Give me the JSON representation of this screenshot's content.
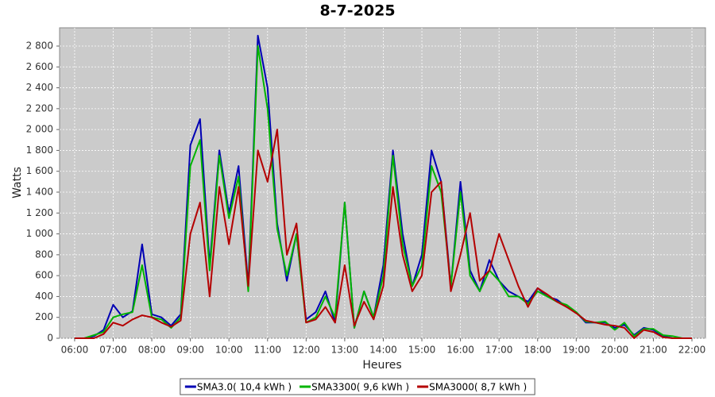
{
  "chart_data": {
    "type": "line",
    "title": "8-7-2025",
    "x_label": "Heures",
    "y_label": "Watts",
    "x": [
      6.0,
      6.25,
      6.5,
      6.75,
      7.0,
      7.25,
      7.5,
      7.75,
      8.0,
      8.25,
      8.5,
      8.75,
      9.0,
      9.25,
      9.5,
      9.75,
      10.0,
      10.25,
      10.5,
      10.75,
      11.0,
      11.25,
      11.5,
      11.75,
      12.0,
      12.25,
      12.5,
      12.75,
      13.0,
      13.25,
      13.5,
      13.75,
      14.0,
      14.25,
      14.5,
      14.75,
      15.0,
      15.25,
      15.5,
      15.75,
      16.0,
      16.25,
      16.5,
      16.75,
      17.0,
      17.25,
      17.5,
      17.75,
      18.0,
      18.25,
      18.5,
      18.75,
      19.0,
      19.25,
      19.5,
      19.75,
      20.0,
      20.25,
      20.5,
      20.75,
      21.0,
      21.25,
      21.5,
      21.75,
      22.0
    ],
    "series": [
      {
        "name": "SMA3.0( 10,4 kWh )",
        "color": "#0000b4",
        "values": [
          0,
          0,
          20,
          80,
          320,
          200,
          260,
          900,
          230,
          200,
          120,
          230,
          1850,
          2100,
          700,
          1800,
          1200,
          1650,
          500,
          2900,
          2400,
          1100,
          550,
          1000,
          180,
          250,
          450,
          150,
          1300,
          100,
          450,
          200,
          700,
          1800,
          1000,
          500,
          800,
          1800,
          1500,
          500,
          1500,
          650,
          450,
          750,
          550,
          450,
          400,
          350,
          480,
          400,
          370,
          300,
          250,
          150,
          150,
          150,
          100,
          130,
          30,
          100,
          80,
          20,
          0,
          0,
          0
        ]
      },
      {
        "name": "SMA3300( 9,6 kWh )",
        "color": "#00b400",
        "values": [
          0,
          0,
          30,
          60,
          200,
          230,
          250,
          700,
          200,
          180,
          100,
          200,
          1650,
          1900,
          650,
          1750,
          1150,
          1550,
          450,
          2800,
          2200,
          1050,
          600,
          1000,
          150,
          200,
          400,
          200,
          1300,
          100,
          450,
          200,
          600,
          1750,
          900,
          500,
          700,
          1650,
          1400,
          500,
          1400,
          600,
          450,
          650,
          550,
          400,
          400,
          330,
          450,
          400,
          350,
          320,
          250,
          160,
          150,
          160,
          80,
          150,
          20,
          90,
          90,
          30,
          20,
          0,
          0
        ]
      },
      {
        "name": "SMA3000( 8,7 kWh )",
        "color": "#b40000",
        "values": [
          0,
          0,
          0,
          40,
          150,
          120,
          180,
          220,
          200,
          150,
          110,
          170,
          1000,
          1300,
          400,
          1450,
          900,
          1450,
          500,
          1800,
          1500,
          2000,
          800,
          1100,
          150,
          180,
          300,
          150,
          700,
          120,
          350,
          180,
          500,
          1450,
          800,
          450,
          600,
          1400,
          1500,
          450,
          800,
          1200,
          550,
          650,
          1000,
          750,
          500,
          300,
          480,
          420,
          350,
          300,
          240,
          170,
          150,
          130,
          120,
          100,
          0,
          80,
          60,
          10,
          0,
          0,
          0
        ]
      }
    ],
    "xlim": [
      5.61,
      22.35
    ],
    "xticks": [
      {
        "value": 6,
        "label": "06:00"
      },
      {
        "value": 7,
        "label": "07:00"
      },
      {
        "value": 8,
        "label": "08:00"
      },
      {
        "value": 9,
        "label": "09:00"
      },
      {
        "value": 10,
        "label": "10:00"
      },
      {
        "value": 11,
        "label": "11:00"
      },
      {
        "value": 12,
        "label": "12:00"
      },
      {
        "value": 13,
        "label": "13:00"
      },
      {
        "value": 14,
        "label": "14:00"
      },
      {
        "value": 15,
        "label": "15:00"
      },
      {
        "value": 16,
        "label": "16:00"
      },
      {
        "value": 17,
        "label": "17:00"
      },
      {
        "value": 18,
        "label": "18:00"
      },
      {
        "value": 19,
        "label": "19:00"
      },
      {
        "value": 20,
        "label": "20:00"
      },
      {
        "value": 21,
        "label": "21:00"
      },
      {
        "value": 22,
        "label": "22:00"
      }
    ],
    "ylim": [
      0,
      2975
    ],
    "yticks": [
      0,
      200,
      400,
      600,
      800,
      {
        "value": 1000,
        "label": "1 000"
      },
      {
        "value": 1200,
        "label": "1 200"
      },
      {
        "value": 1400,
        "label": "1 400"
      },
      {
        "value": 1600,
        "label": "1 600"
      },
      {
        "value": 1800,
        "label": "1 800"
      },
      {
        "value": 2000,
        "label": "2 000"
      },
      {
        "value": 2200,
        "label": "2 200"
      },
      {
        "value": 2400,
        "label": "2 400"
      },
      {
        "value": 2600,
        "label": "2 600"
      },
      {
        "value": 2800,
        "label": "2 800"
      }
    ],
    "grid": true,
    "legend": "bottom"
  }
}
